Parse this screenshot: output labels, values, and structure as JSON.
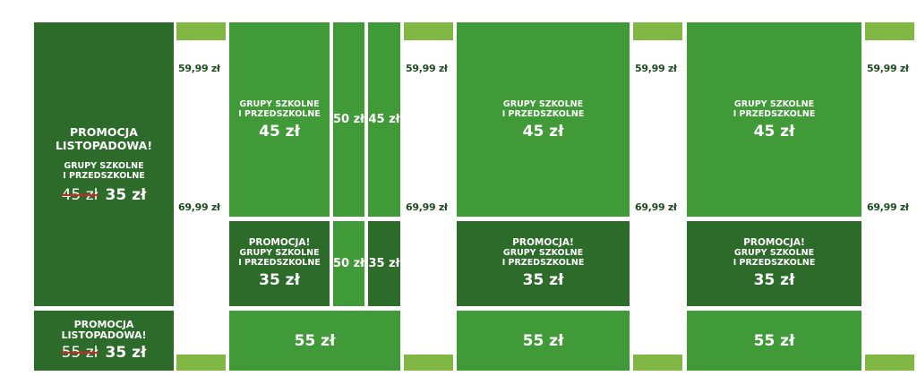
{
  "promo_block": {
    "heading": [
      "PROMOCJA",
      "LISTOPADOWA!"
    ],
    "subheading": [
      "GRUPY SZKOLNE",
      "I PRZEDSZKOLNE"
    ],
    "old_price": "45 zł",
    "new_price": "35 zł"
  },
  "promo_bottom": {
    "heading": [
      "PROMOCJA",
      "LISTOPADOWA!"
    ],
    "old_price": "55 zł",
    "new_price": "35 zł"
  },
  "side_prices": [
    {
      "top": "59,99 zł",
      "bottom": "69,99 zł"
    },
    {
      "top": "59,99 zł",
      "bottom": "69,99 zł"
    },
    {
      "top": "59,99 zł",
      "bottom": "69,99 zł"
    },
    {
      "top": "59,99 zł",
      "bottom": "69,99 zł"
    }
  ],
  "groups": [
    {
      "top": {
        "label": [
          "GRUPY SZKOLNE",
          "I PRZEDSZKOLNE"
        ],
        "price": "45 zł"
      },
      "top_extra": [
        "50 zł",
        "45 zł"
      ],
      "promo": {
        "label": [
          "PROMOCJA!",
          "GRUPY SZKOLNE",
          "I PRZEDSZKOLNE"
        ],
        "price": "35 zł"
      },
      "promo_extra": [
        "50 zł",
        "35 zł"
      ],
      "bottom": "55 zł"
    },
    {
      "top": {
        "label": [
          "GRUPY SZKOLNE",
          "I PRZEDSZKOLNE"
        ],
        "price": "45 zł"
      },
      "promo": {
        "label": [
          "PROMOCJA!",
          "GRUPY SZKOLNE",
          "I PRZEDSZKOLNE"
        ],
        "price": "35 zł"
      },
      "bottom": "55 zł"
    },
    {
      "top": {
        "label": [
          "GRUPY SZKOLNE",
          "I PRZEDSZKOLNE"
        ],
        "price": "45 zł"
      },
      "promo": {
        "label": [
          "PROMOCJA!",
          "GRUPY SZKOLNE",
          "I PRZEDSZKOLNE"
        ],
        "price": "35 zł"
      },
      "bottom": "55 zł"
    }
  ]
}
